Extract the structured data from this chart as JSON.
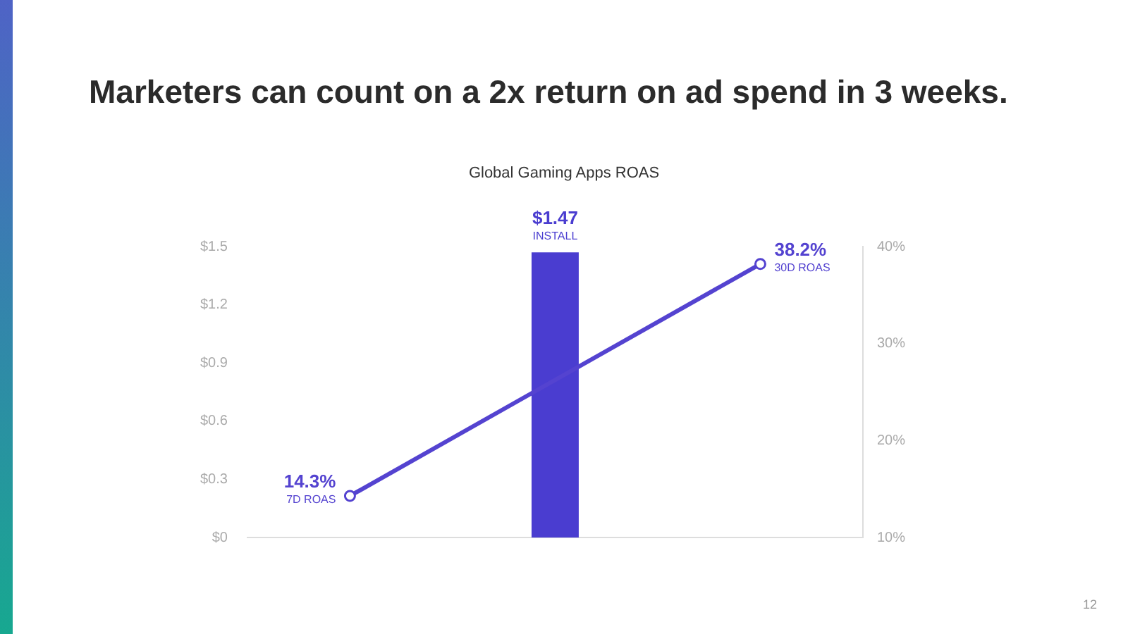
{
  "chart_data": {
    "type": "bar",
    "title": "Marketers can count on a 2x return on ad spend in 3 weeks.",
    "subtitle": "Global Gaming Apps ROAS",
    "categories": [
      null,
      null,
      null
    ],
    "series": [
      {
        "color": "#4a3dd0",
        "values": [
          null,
          1.47,
          null
        ],
        "value_labels": [
          null,
          "$1.47",
          null
        ]
      },
      {
        "type": "line",
        "axis": "y2",
        "color": "#5443d0",
        "values": [
          14.3,
          null,
          38.2
        ],
        "value_labels": [
          "14.3%",
          null,
          "38.2%"
        ],
        "marker": "circle"
      }
    ],
    "ylim": [
      0,
      1.5
    ],
    "yticks": [
      {
        "value": 0,
        "label": "$0"
      },
      {
        "value": 0.3,
        "label": "$0.3"
      },
      {
        "value": 0.6,
        "label": "$0.6"
      },
      {
        "value": 0.9,
        "label": "$0.9"
      },
      {
        "value": 1.2,
        "label": "$1.2"
      },
      {
        "value": 1.5,
        "label": "$1.5"
      }
    ],
    "y2lim": [
      10,
      40
    ],
    "y2ticks": [
      {
        "value": 10,
        "label": "10%"
      },
      {
        "value": 20,
        "label": "20%"
      },
      {
        "value": 30,
        "label": "30%"
      },
      {
        "value": 40,
        "label": "40%"
      }
    ],
    "grid": false,
    "legend": false,
    "annotations": [
      "7D ROAS",
      "INSTALL",
      "30D ROAS",
      "12"
    ]
  }
}
